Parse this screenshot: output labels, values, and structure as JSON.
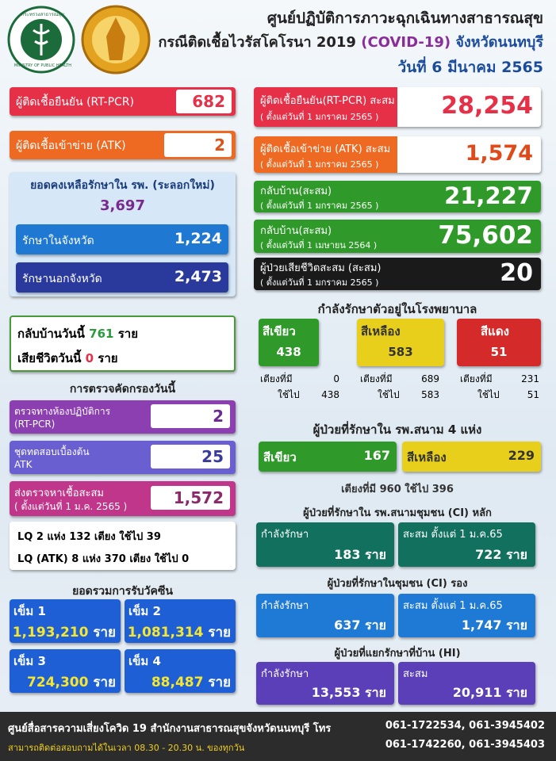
{
  "header": {
    "logo_text": [
      "กระทรวงสาธารณสุข",
      "MINISTRY OF PUBLIC HEALTH"
    ],
    "title": "ศูนย์ปฏิบัติการภาวะฉุกเฉินทางสาธารณสุข",
    "subtitle": [
      "กรณีติดเชื้อไวรัสโคโรนา 2019",
      "(COVID-19)",
      "จังหวัดนนทบุรี"
    ],
    "date": "วันที่ 6 มีนาคม 2565"
  },
  "left": {
    "daily": [
      {
        "label": "ผู้ติดเชื้อยืนยัน (RT-PCR)",
        "value": "682"
      },
      {
        "label": "ผู้ติดเชื้อเข้าข่าย (ATK)",
        "value": "2"
      }
    ],
    "remaining": {
      "label": "ยอดคงเหลือรักษาใน รพ. (ระลอกใหม่)",
      "value": "3,697",
      "in_province": {
        "label": "รักษาในจังหวัด",
        "value": "1,224"
      },
      "out_province": {
        "label": "รักษานอกจังหวัด",
        "value": "2,473"
      }
    },
    "today": [
      {
        "label": "กลับบ้านวันนี้",
        "value": "761",
        "unit": "ราย"
      },
      {
        "label": "เสียชีวิตวันนี้",
        "value": "0",
        "unit": "ราย"
      }
    ],
    "screening": {
      "title": "การตรวจคัดกรองวันนี้",
      "items": [
        {
          "label": "ตรวจทางห้องปฏิบัติการ",
          "sublabel": "(RT-PCR)",
          "value": "2"
        },
        {
          "label": "ชุดทดสอบเบื้องต้น",
          "sublabel": "ATK",
          "value": "25"
        },
        {
          "label": "ส่งตรวจหาเชื้อสะสม",
          "sublabel": "( ตั้งแต่วันที่ 1 ม.ค. 2565 )",
          "value": "1,572"
        }
      ],
      "lq": [
        "LQ  2 แห่ง 132  เตียง  ใช้ไป 39",
        "LQ (ATK) 8 แห่ง 370 เตียง  ใช้ไป 0"
      ]
    },
    "vaccine": {
      "title": "ยอดรวมการรับวัคซีน",
      "doses": [
        {
          "label": "เข็ม 1",
          "value": "1,193,210",
          "unit": "ราย"
        },
        {
          "label": "เข็ม 2",
          "value": "1,081,314",
          "unit": "ราย"
        },
        {
          "label": "เข็ม 3",
          "value": "724,300",
          "unit": "ราย"
        },
        {
          "label": "เข็ม 4",
          "value": "88,487",
          "unit": "ราย"
        }
      ]
    }
  },
  "right": {
    "cumulative": [
      {
        "label": "ผู้ติดเชื้อยืนยัน(RT-PCR) สะสม",
        "since": "( ตั้งแต่วันที่ 1 มกราคม 2565 )",
        "value": "28,254"
      },
      {
        "label": "ผู้ติดเชื้อเข้าข่าย (ATK) สะสม",
        "since": "( ตั้งแต่วันที่ 1 มกราคม 2565 )",
        "value": "1,574"
      },
      {
        "label": "กลับบ้าน(สะสม)",
        "since": "( ตั้งแต่วันที่ 1 มกราคม 2565 )",
        "value": "21,227"
      },
      {
        "label": "กลับบ้าน(สะสม)",
        "since": "( ตั้งแต่วันที่ 1 เมษายน 2564 )",
        "value": "75,602"
      },
      {
        "label": "ผู้ป่วยเสียชีวิตสะสม (สะสม)",
        "since": "( ตั้งแต่วันที่ 1 มกราคม 2565 )",
        "value": "20"
      }
    ],
    "hospital": {
      "title": "กำลังรักษาตัวอยู่ในโรงพยาบาล",
      "levels": [
        {
          "label": "สีเขียว",
          "value": "438",
          "beds_label": "เตียงที่มี",
          "beds": "0",
          "used_label": "ใช้ไป",
          "used": "438"
        },
        {
          "label": "สีเหลือง",
          "value": "583",
          "beds_label": "เตียงที่มี",
          "beds": "689",
          "used_label": "ใช้ไป",
          "used": "583"
        },
        {
          "label": "สีแดง",
          "value": "51",
          "beds_label": "เตียงที่มี",
          "beds": "231",
          "used_label": "ใช้ไป",
          "used": "51"
        }
      ]
    },
    "field": {
      "title": "ผู้ป่วยที่รักษาใน  รพ.สนาม 4 แห่ง",
      "items": [
        {
          "label": "สีเขียว",
          "value": "167"
        },
        {
          "label": "สีเหลือง",
          "value": "229"
        }
      ],
      "beds": "เตียงที่มี 960 ใช้ไป 396"
    },
    "ci_main": {
      "title": "ผู้ป่วยที่รักษาใน  รพ.สนามชุมชน (CI) หลัก",
      "items": [
        {
          "label": "กำลังรักษา",
          "value": "183 ราย"
        },
        {
          "label": "สะสม ตั้งแต่ 1 ม.ค.65",
          "value": "722 ราย"
        }
      ]
    },
    "ci_secondary": {
      "title": "ผู้ป่วยที่รักษาในชุมชน (CI)  รอง",
      "items": [
        {
          "label": "กำลังรักษา",
          "value": "637 ราย"
        },
        {
          "label": "สะสม ตั้งแต่ 1 ม.ค.65",
          "value": "1,747 ราย"
        }
      ]
    },
    "home": {
      "title": "ผู้ป่วยที่แยกรักษาที่บ้าน (HI)",
      "items": [
        {
          "label": "กำลังรักษา",
          "value": "13,553 ราย"
        },
        {
          "label": "สะสม",
          "value": "20,911 ราย"
        }
      ]
    }
  },
  "footer": {
    "org": "ศูนย์สื่อสารความเสี่ยงโควิด 19  สำนักงานสาธารณสุขจังหวัดนนทบุรี  โทร",
    "phones1": "061-1722534, 061-3945402",
    "hours": "สามารถติดต่อสอบถามได้ในเวลา 08.30 - 20.30 น. ของทุกวัน",
    "phones2": "061-1742260, 061-3945403"
  }
}
